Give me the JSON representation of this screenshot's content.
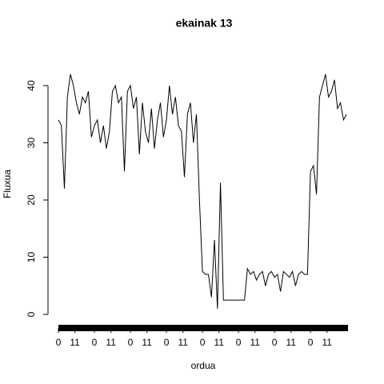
{
  "chart_data": {
    "type": "line",
    "title": "ekainak 13",
    "xlabel": "ordua",
    "ylabel": "Fluxua",
    "x": [
      0,
      2,
      4,
      6,
      8,
      10,
      12,
      14,
      16,
      18,
      20,
      22,
      24,
      26,
      28,
      30,
      32,
      34,
      36,
      38,
      40,
      42,
      44,
      46,
      48,
      50,
      52,
      54,
      56,
      58,
      60,
      62,
      64,
      66,
      68,
      70,
      72,
      74,
      76,
      78,
      80,
      82,
      84,
      86,
      88,
      90,
      92,
      94,
      96,
      98,
      100,
      102,
      104,
      106,
      108,
      110,
      112,
      114,
      116,
      118,
      120,
      122,
      124,
      126,
      128,
      130,
      132,
      134,
      136,
      138,
      140,
      142,
      144,
      146,
      148,
      150,
      152,
      154,
      156,
      158,
      160,
      162,
      164,
      166,
      168,
      170,
      172,
      174,
      176,
      178,
      180,
      182,
      184,
      186,
      188,
      190,
      192
    ],
    "series": [
      {
        "name": "Fluxua",
        "color": "#000000",
        "values": [
          34,
          33,
          22,
          38,
          42,
          40,
          37,
          35,
          38,
          37,
          39,
          31,
          33,
          34,
          30,
          33,
          29,
          32,
          39,
          40,
          37,
          38,
          25,
          39,
          40,
          36,
          38,
          28,
          37,
          32,
          30,
          36,
          29,
          34,
          37,
          31,
          34,
          40,
          35,
          38,
          33,
          32,
          24,
          35,
          37,
          30,
          35,
          20,
          7.5,
          7,
          7,
          3,
          13,
          1,
          23,
          2.5,
          2.5,
          2.5,
          2.5,
          2.5,
          2.5,
          2.5,
          2.5,
          8,
          7,
          7.5,
          6,
          7,
          7.5,
          5,
          7,
          7.5,
          6.5,
          7,
          4,
          7.5,
          7,
          6.5,
          7.5,
          5,
          7,
          7.5,
          7,
          7,
          25,
          26,
          21,
          38,
          40,
          42,
          38,
          39,
          41,
          36,
          37,
          34,
          35
        ]
      }
    ],
    "xlim": [
      0,
      193
    ],
    "xticks": [
      {
        "value": 0,
        "label": "0"
      },
      {
        "value": 11,
        "label": "11"
      },
      {
        "value": 24,
        "label": "0"
      },
      {
        "value": 35,
        "label": "11"
      },
      {
        "value": 48,
        "label": "0"
      },
      {
        "value": 59,
        "label": "11"
      },
      {
        "value": 72,
        "label": "0"
      },
      {
        "value": 83,
        "label": "11"
      },
      {
        "value": 96,
        "label": "0"
      },
      {
        "value": 107,
        "label": "11"
      },
      {
        "value": 120,
        "label": "0"
      },
      {
        "value": 131,
        "label": "11"
      },
      {
        "value": 144,
        "label": "0"
      },
      {
        "value": 155,
        "label": "11"
      },
      {
        "value": 168,
        "label": "0"
      },
      {
        "value": 179,
        "label": "11"
      }
    ],
    "ylim": [
      0,
      40
    ],
    "yticks": [
      0,
      10,
      20,
      30,
      40
    ]
  }
}
